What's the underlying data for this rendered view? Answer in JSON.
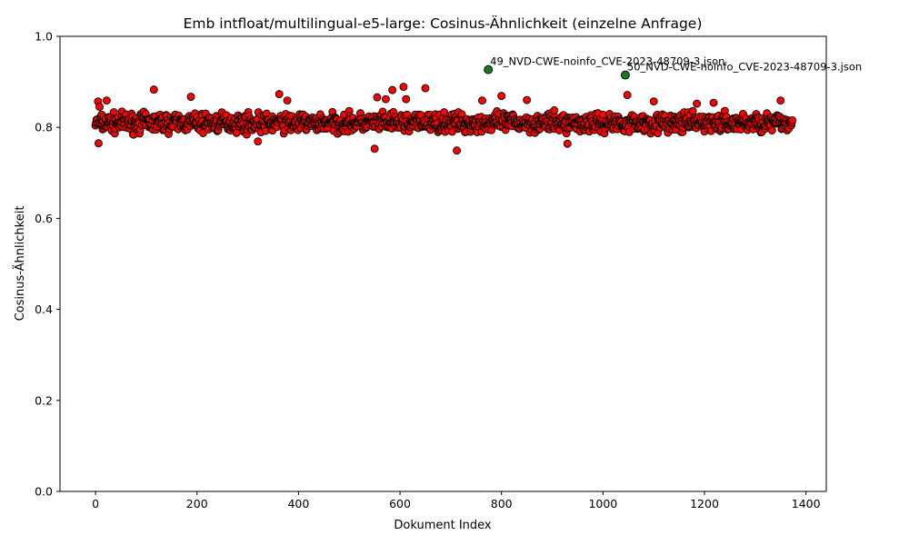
{
  "chart_data": {
    "type": "scatter",
    "title": "Emb intfloat/multilingual-e5-large: Cosinus-Ähnlichkeit (einzelne Anfrage)",
    "xlabel": "Dokument Index",
    "ylabel": "Cosinus-Ähnlichkeit",
    "xlim": [
      -70,
      1440
    ],
    "ylim": [
      0.0,
      1.0
    ],
    "xticks": [
      "0",
      "200",
      "400",
      "600",
      "800",
      "1000",
      "1200",
      "1400"
    ],
    "yticks": [
      "0.0",
      "0.2",
      "0.4",
      "0.6",
      "0.8",
      "1.0"
    ],
    "grid": false,
    "series": [
      {
        "marker_color": "#ff0000",
        "edge_color": "#000000",
        "x_range": [
          0,
          1373
        ],
        "count": 1374,
        "y_typical_range": [
          0.78,
          0.84
        ],
        "y_mean": 0.81,
        "outliers": [
          {
            "x": 5,
            "y": 0.857
          },
          {
            "x": 8,
            "y": 0.845
          },
          {
            "x": 6,
            "y": 0.765
          },
          {
            "x": 22,
            "y": 0.859
          },
          {
            "x": 115,
            "y": 0.883
          },
          {
            "x": 188,
            "y": 0.867
          },
          {
            "x": 320,
            "y": 0.769
          },
          {
            "x": 362,
            "y": 0.873
          },
          {
            "x": 378,
            "y": 0.859
          },
          {
            "x": 550,
            "y": 0.753
          },
          {
            "x": 555,
            "y": 0.866
          },
          {
            "x": 572,
            "y": 0.862
          },
          {
            "x": 585,
            "y": 0.882
          },
          {
            "x": 607,
            "y": 0.889
          },
          {
            "x": 612,
            "y": 0.862
          },
          {
            "x": 650,
            "y": 0.886
          },
          {
            "x": 712,
            "y": 0.749
          },
          {
            "x": 762,
            "y": 0.859
          },
          {
            "x": 800,
            "y": 0.869
          },
          {
            "x": 850,
            "y": 0.86
          },
          {
            "x": 930,
            "y": 0.764
          },
          {
            "x": 1048,
            "y": 0.871
          },
          {
            "x": 1100,
            "y": 0.857
          },
          {
            "x": 1185,
            "y": 0.852
          },
          {
            "x": 1218,
            "y": 0.854
          },
          {
            "x": 1350,
            "y": 0.859
          }
        ]
      },
      {
        "marker_color": "#1a7a1a",
        "edge_color": "#000000",
        "points": [
          {
            "x": 774,
            "y": 0.927,
            "label": "49_NVD-CWE-noinfo_CVE-2023-48709-3.json"
          },
          {
            "x": 1044,
            "y": 0.915,
            "label": "50_NVD-CWE-noinfo_CVE-2023-48709-3.json"
          }
        ]
      }
    ]
  }
}
